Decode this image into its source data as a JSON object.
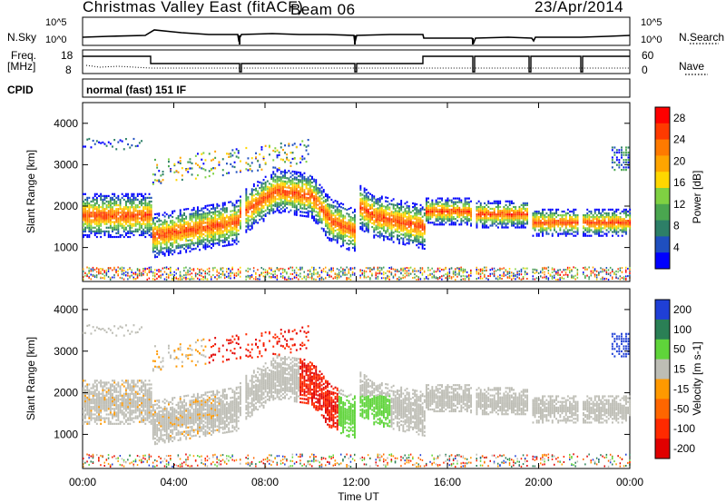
{
  "header": {
    "station": "Christmas Valley East (fitACF)",
    "beam": "Beam 06",
    "date": "23/Apr/2014"
  },
  "panels": {
    "noise": {
      "left_label": "N.Sky",
      "right_label": "N.Search",
      "left_ticks": [
        "10^5",
        "10^0"
      ],
      "right_ticks": [
        "10^5",
        "10^0"
      ]
    },
    "freq": {
      "left_label_1": "Freq.",
      "left_label_2": "[MHz]",
      "right_label": "Nave",
      "left_ticks": [
        "18",
        "8"
      ],
      "right_ticks": [
        "60",
        "0"
      ]
    },
    "cpid": {
      "label": "CPID",
      "value": "normal (fast) 151 IF"
    }
  },
  "colors": {
    "power": [
      "#0000ff",
      "#1f4fbf",
      "#2d7f67",
      "#4aa64f",
      "#7fd142",
      "#ffd700",
      "#ffa500",
      "#ff7a00",
      "#ff3a00",
      "#ff0000"
    ],
    "velocity": [
      "#1f3fd6",
      "#2a7f55",
      "#5fd43a",
      "#bdbdb5",
      "#ff9900",
      "#ff6600",
      "#ff2a00",
      "#e00000"
    ]
  },
  "chart_data": [
    {
      "type": "heatmap",
      "parameter": "Power",
      "xlabel": "",
      "ylabel": "Slant Range [km]",
      "xlim": [
        "00:00",
        "24:00"
      ],
      "ylim": [
        180,
        4500
      ],
      "x_ticks": [
        "00:00",
        "04:00",
        "08:00",
        "12:00",
        "16:00",
        "20:00",
        "00:00"
      ],
      "y_ticks": [
        1000,
        2000,
        3000,
        4000
      ],
      "colorbar": {
        "label": "Power [dB]",
        "ticks": [
          4,
          8,
          12,
          16,
          20,
          24,
          28
        ],
        "range": [
          0,
          30
        ]
      }
    },
    {
      "type": "heatmap",
      "parameter": "Velocity",
      "xlabel": "Time UT",
      "ylabel": "Slant Range [km]",
      "xlim": [
        "00:00",
        "24:00"
      ],
      "ylim": [
        180,
        4500
      ],
      "x_ticks": [
        "00:00",
        "04:00",
        "08:00",
        "12:00",
        "16:00",
        "20:00",
        "00:00"
      ],
      "y_ticks": [
        1000,
        2000,
        3000,
        4000
      ],
      "colorbar": {
        "label": "Velocity [m s-1]",
        "ticks": [
          200,
          100,
          50,
          15,
          -15,
          -50,
          -100,
          -200
        ]
      }
    }
  ]
}
